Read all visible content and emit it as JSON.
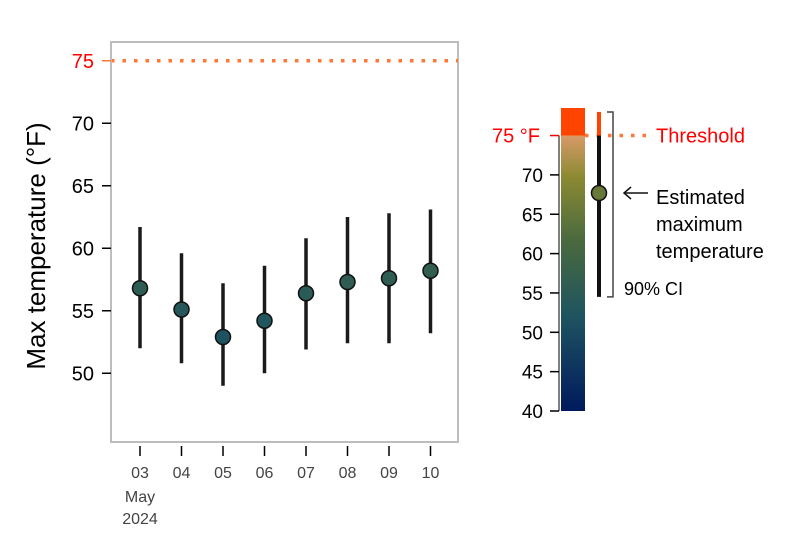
{
  "chart_data": {
    "type": "scatter",
    "ylabel": "Max temperature (°F)",
    "y_ticks": [
      50,
      55,
      60,
      65,
      70,
      75
    ],
    "ylim": [
      44.5,
      76.5
    ],
    "x": [
      "03",
      "04",
      "05",
      "06",
      "07",
      "08",
      "09",
      "10"
    ],
    "x_month": "May",
    "x_year": "2024",
    "series": [
      {
        "estimate": [
          56.8,
          55.1,
          52.9,
          54.2,
          56.4,
          57.3,
          57.6,
          58.2
        ],
        "ci_low": [
          52.0,
          50.8,
          49.0,
          50.0,
          51.9,
          52.4,
          52.4,
          53.2
        ],
        "ci_high": [
          61.7,
          59.6,
          57.2,
          58.6,
          60.8,
          62.5,
          62.8,
          63.1
        ]
      }
    ],
    "threshold": {
      "value": 75,
      "label": "75",
      "color": "#ff7733",
      "label_color": "#ff0000"
    },
    "grid": false,
    "legend": {
      "position": "right",
      "scale_ticks": [
        40,
        45,
        50,
        55,
        60,
        65,
        70
      ],
      "scale_range": [
        40,
        78.5
      ],
      "threshold_label": "75 °F",
      "threshold_text": "Threshold",
      "example_estimate": 67.7,
      "example_ci": [
        54.5,
        78.0
      ],
      "estimate_label": [
        "Estimated",
        "maximum",
        "temperature"
      ],
      "ci_label": "90% CI",
      "colors": {
        "low": "#001a5e",
        "mid_low": "#1f5560",
        "mid": "#4a6a3e",
        "mid_high": "#8c8a32",
        "warm": "#d89a68",
        "hot": "#ff4400"
      }
    }
  }
}
